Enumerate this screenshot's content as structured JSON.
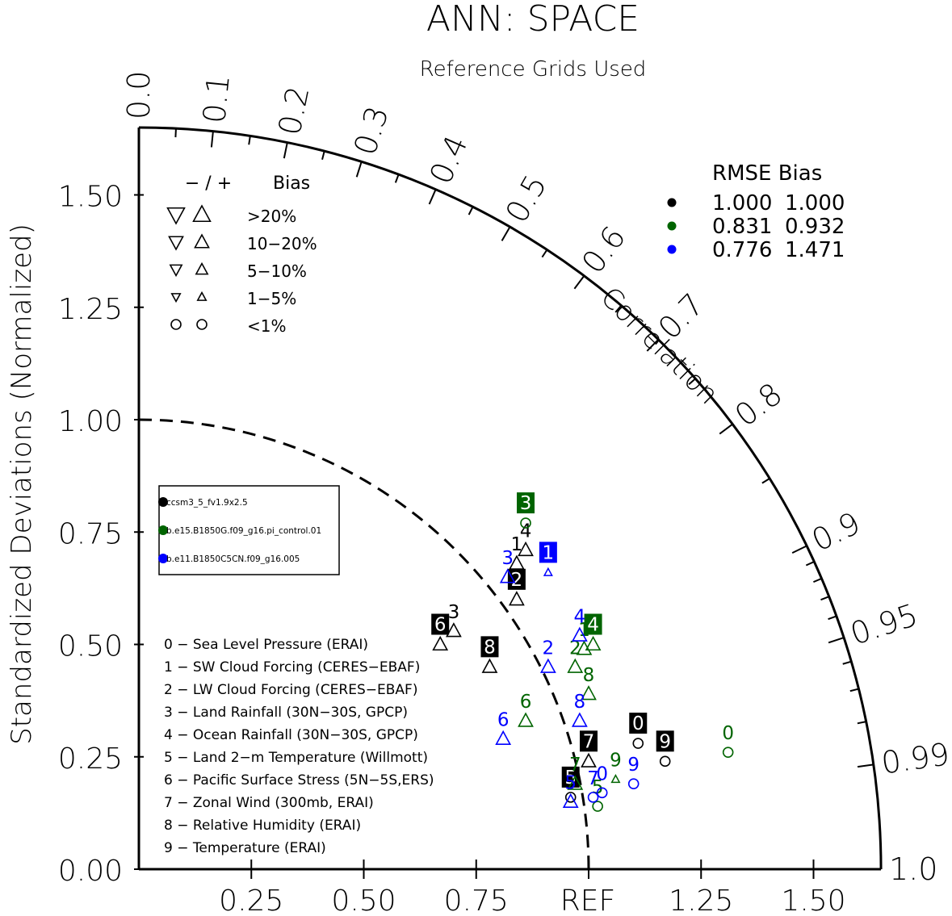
{
  "chart_data": {
    "type": "scatter",
    "title": "ANN: SPACE",
    "subtitle": "Reference Grids Used",
    "ylabel": "Standardized Deviations (Normalized)",
    "xlabel_ref": "REF",
    "angular_label": "Correlation",
    "x_ticks": [
      "0.25",
      "0.50",
      "0.75",
      "1.25",
      "1.50"
    ],
    "y_ticks": [
      "0.00",
      "0.25",
      "0.50",
      "0.75",
      "1.00",
      "1.25",
      "1.50"
    ],
    "corr_ticks": [
      "0.0",
      "0.1",
      "0.2",
      "0.3",
      "0.4",
      "0.5",
      "0.6",
      "0.7",
      "0.8",
      "0.9",
      "0.95",
      "0.99",
      "1.0"
    ],
    "max_std": 1.65,
    "bias_legend": {
      "header_sign": "−  /  +",
      "header_label": "Bias",
      "rows": [
        ">20%",
        "10−20%",
        "5−10%",
        "1−5%",
        "<1%"
      ]
    },
    "rmse_legend": {
      "header": "RMSE  Bias",
      "rows": [
        {
          "rmse": "1.000",
          "bias": "1.000",
          "color": "#000000"
        },
        {
          "rmse": "0.831",
          "bias": "0.932",
          "color": "#006400"
        },
        {
          "rmse": "0.776",
          "bias": "1.471",
          "color": "#0000ff"
        }
      ]
    },
    "cases_legend": [
      {
        "name": "ccsm3_5_fv1.9x2.5",
        "color": "#000000"
      },
      {
        "name": "b.e15.B1850G.f09_g16.pi_control.01",
        "color": "#006400"
      },
      {
        "name": "b.e11.B1850C5CN.f09_g16.005",
        "color": "#0000ff"
      }
    ],
    "variables": [
      "0 − Sea Level Pressure (ERAI)",
      "1 − SW Cloud Forcing (CERES−EBAF)",
      "2 − LW Cloud Forcing (CERES−EBAF)",
      "3 − Land Rainfall (30N−30S, GPCP)",
      "4 − Ocean Rainfall (30N−30S, GPCP)",
      "5 − Land 2−m Temperature (Willmott)",
      "6 − Pacific Surface Stress (5N−5S,ERS)",
      "7 − Zonal Wind (300mb, ERAI)",
      "8 − Relative Humidity (ERAI)",
      "9 − Temperature (ERAI)"
    ],
    "series": [
      {
        "name": "ccsm3_5_fv1.9x2.5",
        "color": "#000000",
        "points": [
          {
            "id": "0",
            "x": 1.11,
            "y": 0.28,
            "marker": "circle",
            "label": "boxed"
          },
          {
            "id": "1",
            "x": 0.84,
            "y": 0.68,
            "marker": "up",
            "label": "plain"
          },
          {
            "id": "2",
            "x": 0.84,
            "y": 0.6,
            "marker": "up",
            "label": "boxed"
          },
          {
            "id": "3",
            "x": 0.7,
            "y": 0.53,
            "marker": "up",
            "label": "plain"
          },
          {
            "id": "4",
            "x": 0.86,
            "y": 0.71,
            "marker": "up",
            "label": "plain"
          },
          {
            "id": "5",
            "x": 0.96,
            "y": 0.16,
            "marker": "circle",
            "label": "boxed"
          },
          {
            "id": "6",
            "x": 0.67,
            "y": 0.5,
            "marker": "up",
            "label": "boxed"
          },
          {
            "id": "7",
            "x": 1.0,
            "y": 0.24,
            "marker": "up",
            "label": "boxed"
          },
          {
            "id": "8",
            "x": 0.78,
            "y": 0.45,
            "marker": "up",
            "label": "boxed"
          },
          {
            "id": "9",
            "x": 1.17,
            "y": 0.24,
            "marker": "circle",
            "label": "boxed"
          }
        ]
      },
      {
        "name": "b.e15.B1850G.f09_g16.pi_control.01",
        "color": "#006400",
        "points": [
          {
            "id": "0",
            "x": 1.31,
            "y": 0.26,
            "marker": "circle",
            "label": "plain"
          },
          {
            "id": "1",
            "x": 0.99,
            "y": 0.49,
            "marker": "up",
            "label": "plain"
          },
          {
            "id": "2",
            "x": 0.97,
            "y": 0.45,
            "marker": "up",
            "label": "plain"
          },
          {
            "id": "3",
            "x": 0.86,
            "y": 0.77,
            "marker": "circle",
            "label": "boxed"
          },
          {
            "id": "4",
            "x": 1.01,
            "y": 0.5,
            "marker": "up",
            "label": "boxed"
          },
          {
            "id": "5",
            "x": 1.02,
            "y": 0.14,
            "marker": "circle",
            "label": "plain"
          },
          {
            "id": "6",
            "x": 0.86,
            "y": 0.33,
            "marker": "up",
            "label": "plain"
          },
          {
            "id": "7",
            "x": 0.97,
            "y": 0.19,
            "marker": "up",
            "label": "plain"
          },
          {
            "id": "8",
            "x": 1.0,
            "y": 0.39,
            "marker": "up",
            "label": "plain"
          },
          {
            "id": "9",
            "x": 1.06,
            "y": 0.2,
            "marker": "tri-small",
            "label": "plain"
          }
        ]
      },
      {
        "name": "b.e11.B1850C5CN.f09_g16.005",
        "color": "#0000ff",
        "points": [
          {
            "id": "0",
            "x": 1.03,
            "y": 0.17,
            "marker": "circle",
            "label": "plain"
          },
          {
            "id": "1",
            "x": 0.91,
            "y": 0.66,
            "marker": "tri-small",
            "label": "boxed"
          },
          {
            "id": "2",
            "x": 0.91,
            "y": 0.45,
            "marker": "up",
            "label": "plain"
          },
          {
            "id": "3",
            "x": 0.82,
            "y": 0.65,
            "marker": "up",
            "label": "plain"
          },
          {
            "id": "4",
            "x": 0.98,
            "y": 0.52,
            "marker": "up",
            "label": "plain"
          },
          {
            "id": "5",
            "x": 0.96,
            "y": 0.15,
            "marker": "up",
            "label": "plain"
          },
          {
            "id": "6",
            "x": 0.81,
            "y": 0.29,
            "marker": "up",
            "label": "plain"
          },
          {
            "id": "7",
            "x": 1.01,
            "y": 0.16,
            "marker": "circle",
            "label": "plain"
          },
          {
            "id": "8",
            "x": 0.98,
            "y": 0.33,
            "marker": "up",
            "label": "plain"
          },
          {
            "id": "9",
            "x": 1.1,
            "y": 0.19,
            "marker": "circle",
            "label": "plain"
          }
        ]
      }
    ]
  }
}
